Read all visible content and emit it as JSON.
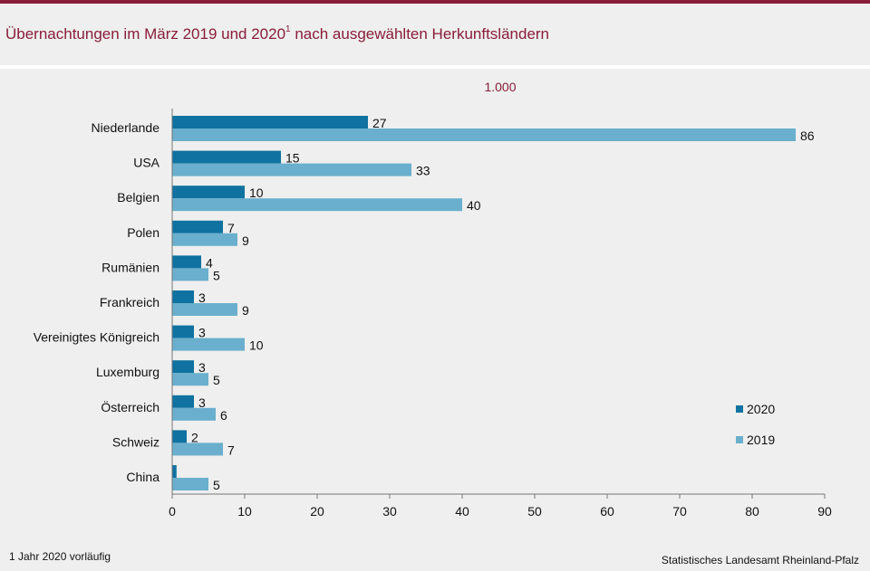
{
  "title_main": "Übernachtungen im März 2019 und 2020",
  "title_sup": "1",
  "title_rest": " nach ausgewählten Herkunftsländern",
  "unit_label": "1.000",
  "footnote": "1 Jahr 2020 vorläufig",
  "source": "Statistisches Landesamt Rheinland-Pfalz",
  "colors": {
    "s2020": "#0f72a0",
    "s2019": "#6aafcd",
    "accent": "#8a1d3a"
  },
  "chart_data": {
    "type": "bar",
    "orientation": "horizontal",
    "categories": [
      "Niederlande",
      "USA",
      "Belgien",
      "Polen",
      "Rumänien",
      "Frankreich",
      "Vereinigtes Königreich",
      "Luxemburg",
      "Österreich",
      "Schweiz",
      "China"
    ],
    "series": [
      {
        "name": "2020",
        "values": [
          27,
          15,
          10,
          7,
          4,
          3,
          3,
          3,
          3,
          2,
          0.6
        ],
        "labels": [
          "27",
          "15",
          "10",
          "7",
          "4",
          "3",
          "3",
          "3",
          "3",
          "2",
          ""
        ]
      },
      {
        "name": "2019",
        "values": [
          86,
          33,
          40,
          9,
          5,
          9,
          10,
          5,
          6,
          7,
          5
        ],
        "labels": [
          "86",
          "33",
          "40",
          "9",
          "5",
          "9",
          "10",
          "5",
          "6",
          "7",
          "5"
        ]
      }
    ],
    "xlim": [
      0,
      90
    ],
    "xticks": [
      0,
      10,
      20,
      30,
      40,
      50,
      60,
      70,
      80,
      90
    ],
    "grid": false,
    "legend_position": "right"
  }
}
